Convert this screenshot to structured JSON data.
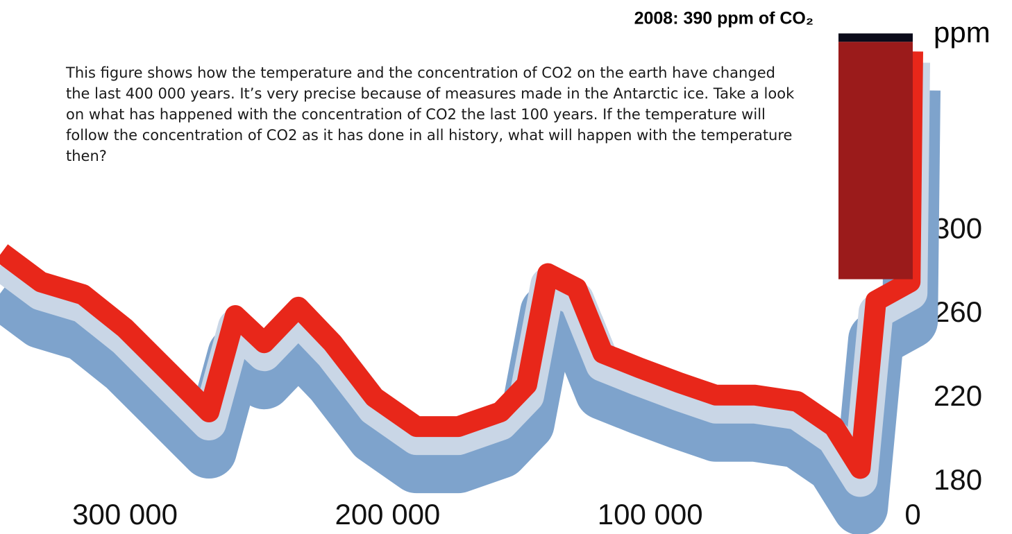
{
  "chart_data": {
    "type": "ribbon",
    "annotation": "2008: 390 ppm of CO₂",
    "description": "This figure shows how the temperature and the concentration of CO2 on the earth have changed the last 400 000 years. It’s very precise because of measures made in the Antarctic ice. Take a look on what has happened with the concentration of CO2 the last 100 years. If the temperature will follow the concentration of CO2 as it has done in all history, what will happen with the temperature then?",
    "y_label": "ppm",
    "x": [
      347000,
      332000,
      316000,
      300000,
      284000,
      268000,
      258000,
      247000,
      234000,
      221000,
      205000,
      189000,
      173000,
      157000,
      147000,
      139000,
      128000,
      118000,
      104000,
      89000,
      75000,
      60000,
      44000,
      30000,
      20000,
      14000,
      1000,
      0
    ],
    "values": [
      294,
      280,
      274,
      258,
      238,
      218,
      264,
      251,
      268,
      251,
      225,
      211,
      211,
      218,
      231,
      284,
      277,
      246,
      239,
      232,
      226,
      226,
      223,
      211,
      191,
      271,
      280,
      390
    ],
    "color": "#e8271a",
    "xlim": [
      347600,
      -37800
    ],
    "ylim": [
      170,
      400
    ],
    "xticks": [
      {
        "value": 300000,
        "label": "300 000"
      },
      {
        "value": 200000,
        "label": "200 000"
      },
      {
        "value": 100000,
        "label": "100 000"
      },
      0
    ],
    "yticks": [
      180,
      220,
      260,
      300
    ]
  }
}
